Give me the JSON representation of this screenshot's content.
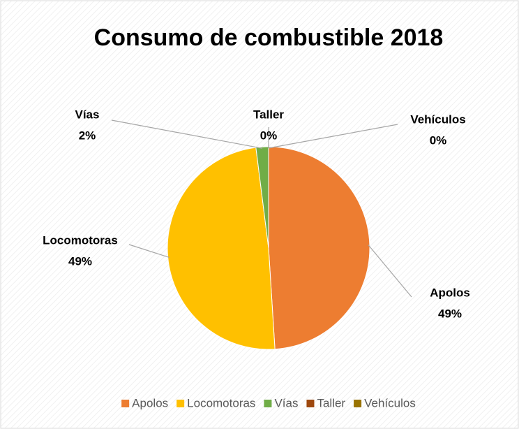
{
  "chart_data": {
    "type": "pie",
    "title": "Consumo de combustible 2018",
    "categories": [
      "Apolos",
      "Locomotoras",
      "Vías",
      "Taller",
      "Vehículos"
    ],
    "values": [
      49,
      49,
      2,
      0,
      0
    ],
    "value_labels": [
      "49%",
      "49%",
      "2%",
      "0%",
      "0%"
    ],
    "colors": [
      "#ED7D31",
      "#FFC000",
      "#70AD47",
      "#9E480E",
      "#997300"
    ],
    "legend": "bottom"
  }
}
